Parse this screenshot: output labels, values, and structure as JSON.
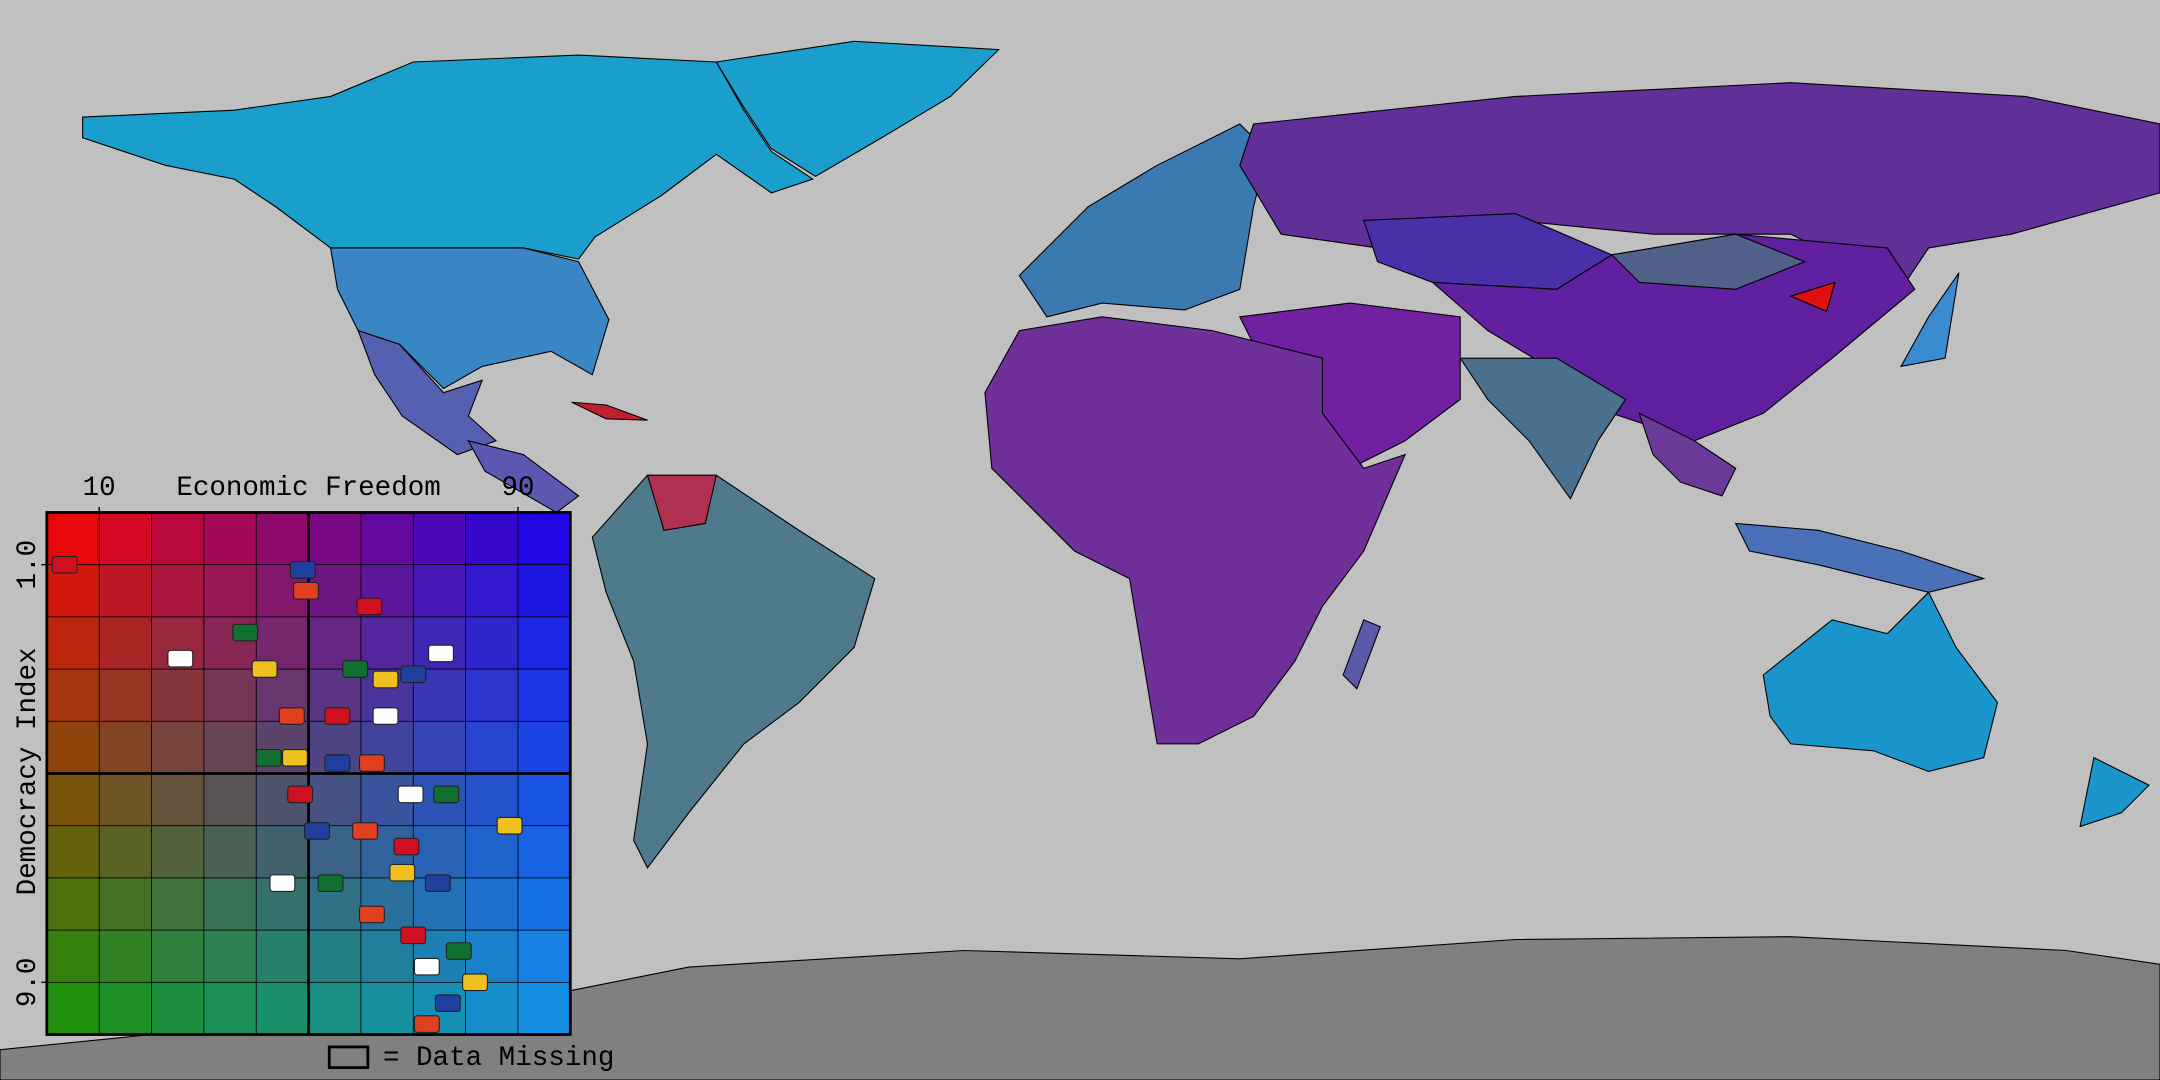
{
  "chart_data": {
    "type": "scatter",
    "x_label": "Economic Freedom",
    "y_label": "Democracy Index",
    "missing_label": "= Data Missing",
    "xlim": [
      0,
      100
    ],
    "ylim": [
      0,
      10
    ],
    "xticks": [
      10,
      90
    ],
    "yticks": [
      {
        "value": 1,
        "label": "1.0"
      },
      {
        "value": 9,
        "label": "9.0"
      }
    ],
    "x": [
      3.4,
      25.5,
      37.9,
      41.6,
      48.9,
      49.5,
      61.6,
      75.3,
      58.9,
      64.7,
      70,
      46.8,
      55.5,
      64.7,
      42.4,
      47.4,
      55.5,
      62.1,
      48.4,
      69.5,
      76.3,
      88.4,
      51.6,
      60.8,
      68.7,
      45,
      54.2,
      67.9,
      74.7,
      62.1,
      70,
      72.6,
      78.7,
      81.8,
      76.6,
      72.6
    ],
    "values": [
      1.0,
      2.8,
      2.3,
      3.0,
      1.1,
      1.5,
      1.8,
      2.7,
      3.0,
      3.2,
      3.1,
      3.9,
      3.9,
      3.9,
      4.7,
      4.7,
      4.8,
      4.8,
      5.4,
      5.4,
      5.4,
      6.0,
      6.1,
      6.1,
      6.4,
      7.1,
      7.1,
      6.9,
      7.1,
      7.7,
      8.1,
      8.7,
      8.4,
      9.0,
      9.4,
      9.8
    ]
  }
}
